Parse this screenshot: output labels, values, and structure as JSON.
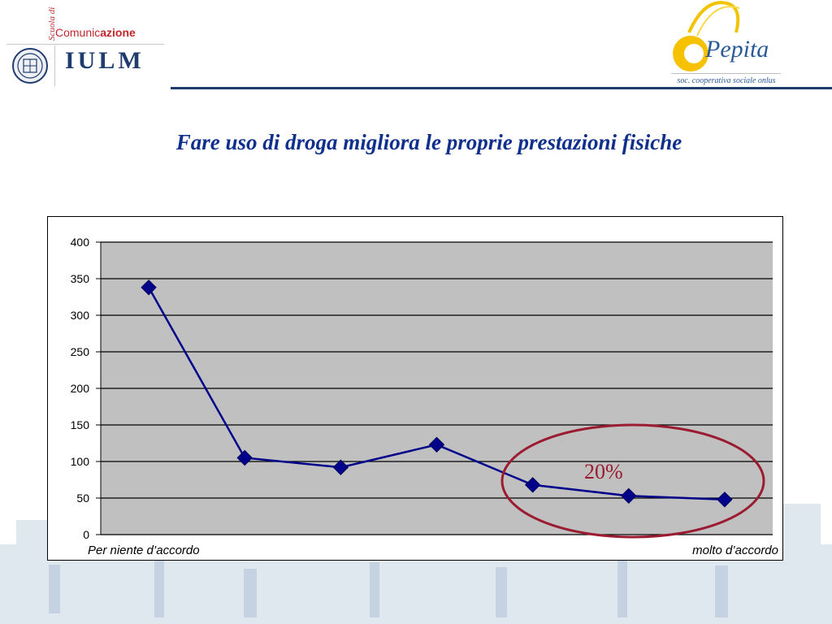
{
  "header": {
    "scuola": "Scuola di",
    "comunic_part1": "Comunic",
    "comunic_part2": "azione",
    "iulm": "IULM",
    "pepita": "Pepita",
    "pepita_tagline": "soc. cooperativa sociale onlus"
  },
  "colors": {
    "title": "#0f2f8c",
    "series": "#00008b",
    "plot_bg": "#c0c0c0",
    "highlight": "#9b1b30"
  },
  "chart_data": {
    "type": "line",
    "title": "Fare uso di droga migliora le proprie prestazioni fisiche",
    "x": [
      1,
      2,
      3,
      4,
      5,
      6,
      7
    ],
    "x_label_first": "Per niente d’accordo",
    "x_label_last": "molto d’accordo",
    "series": [
      {
        "values": [
          338,
          105,
          92,
          123,
          68,
          53,
          48
        ]
      }
    ],
    "ylim": [
      0,
      400
    ],
    "yticks": [
      0,
      50,
      100,
      150,
      200,
      250,
      300,
      350,
      400
    ],
    "grid": true,
    "annotation": {
      "text": "20%",
      "covers_points": [
        5,
        6,
        7
      ]
    }
  }
}
